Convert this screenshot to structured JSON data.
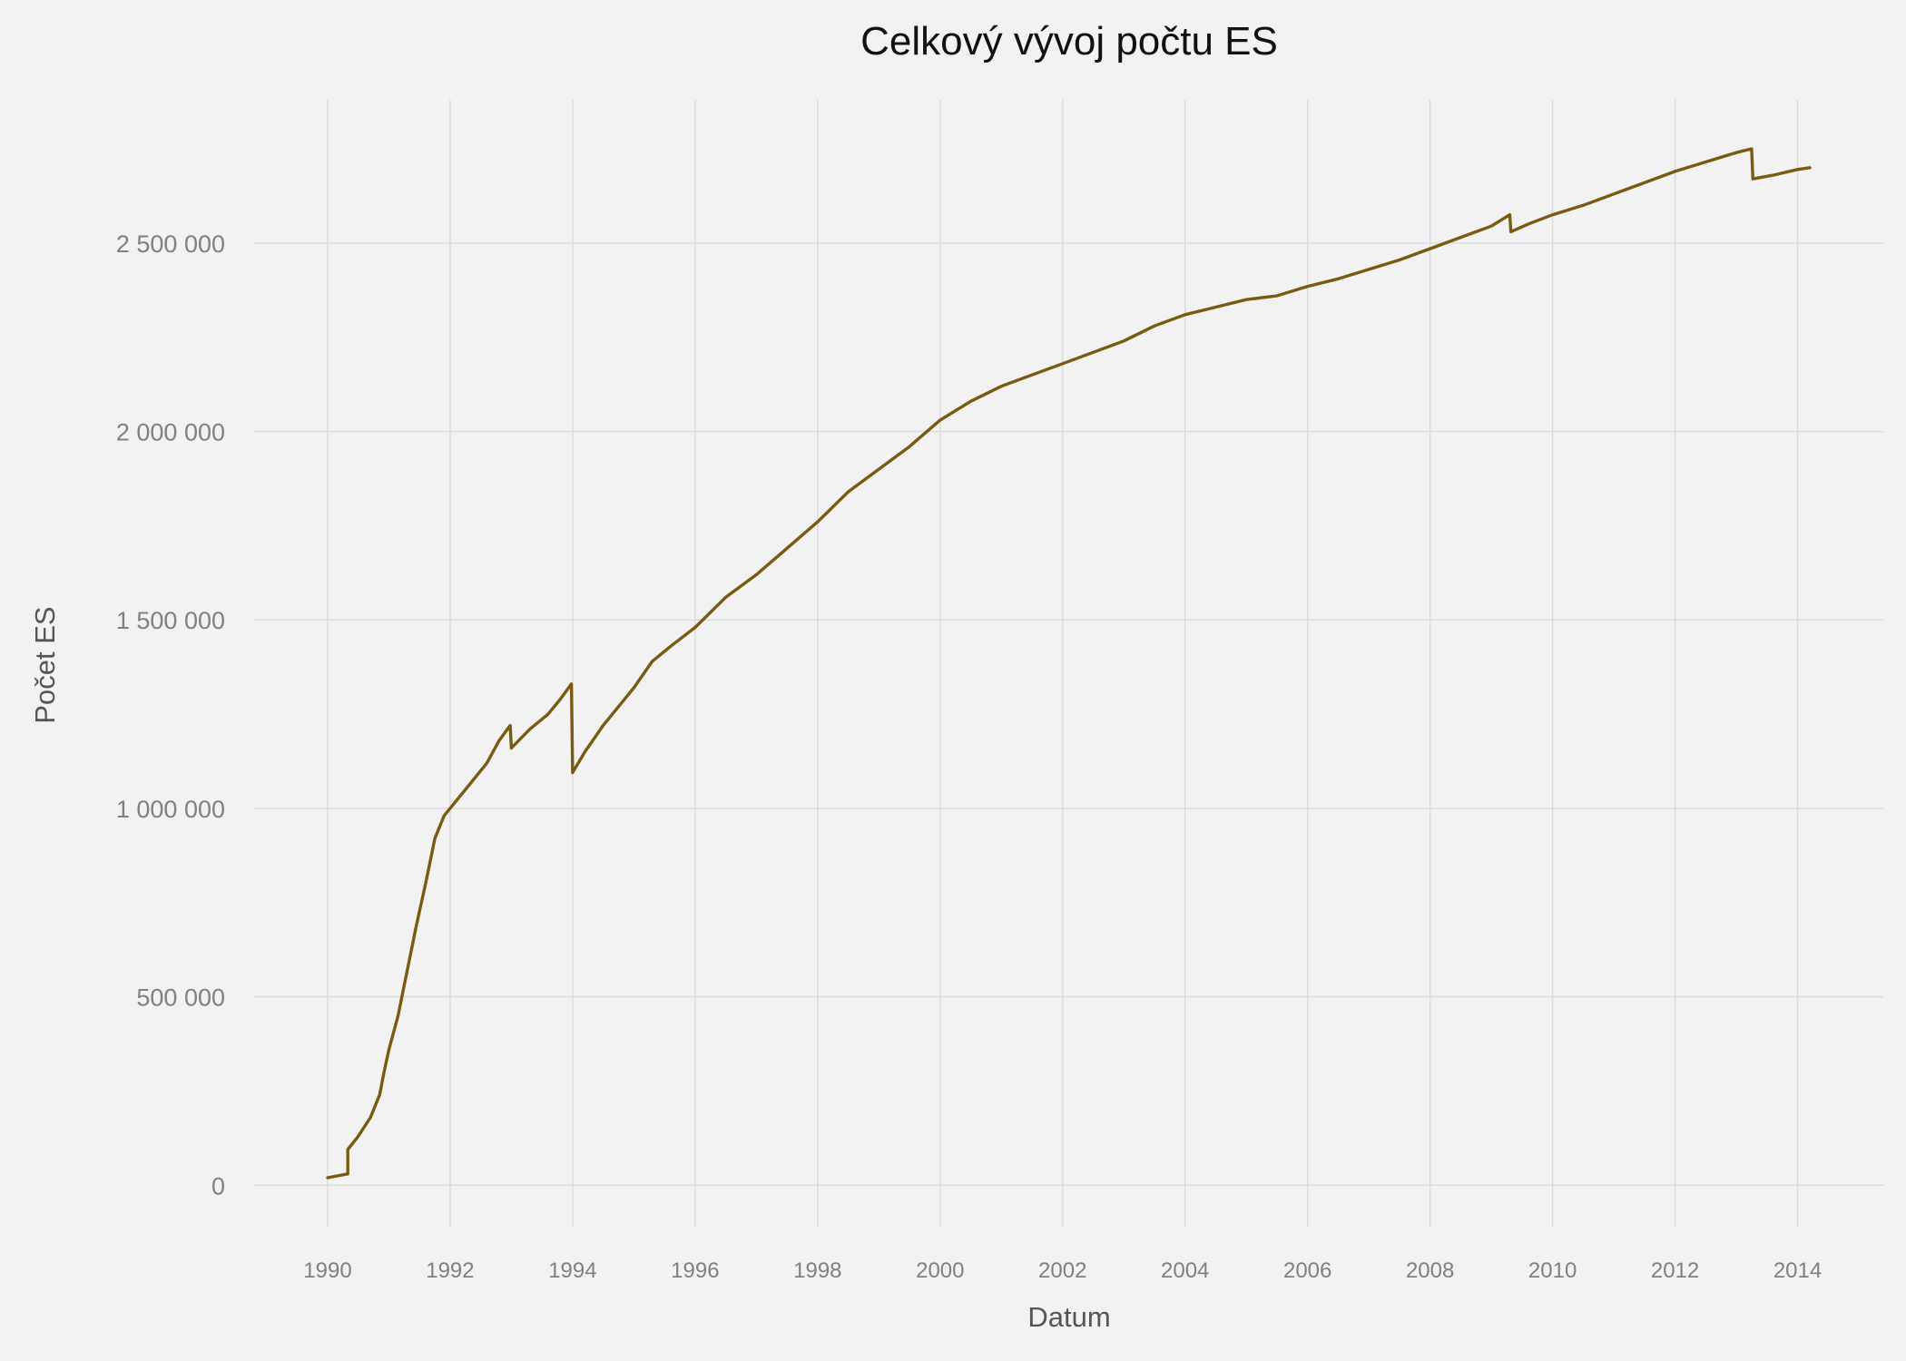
{
  "chart_data": {
    "type": "line",
    "title": "Celkový vývoj počtu ES",
    "xlabel": "Datum",
    "ylabel": "Počet ES",
    "xlim": [
      1988.8,
      2015.4
    ],
    "ylim": [
      -110000,
      2880000
    ],
    "grid": true,
    "legend": "none",
    "x_ticks": [
      1990,
      1992,
      1994,
      1996,
      1998,
      2000,
      2002,
      2004,
      2006,
      2008,
      2010,
      2012,
      2014
    ],
    "x_tick_labels": [
      "1990",
      "1992",
      "1994",
      "1996",
      "1998",
      "2000",
      "2002",
      "2004",
      "2006",
      "2008",
      "2010",
      "2012",
      "2014"
    ],
    "y_ticks": [
      0,
      500000,
      1000000,
      1500000,
      2000000,
      2500000
    ],
    "y_tick_labels": [
      "0",
      "500 000",
      "1 000 000",
      "1 500 000",
      "2 000 000",
      "2 500 000"
    ],
    "series": [
      {
        "name": "Počet ES",
        "color": "#7a5a12",
        "x": [
          1990.0,
          1990.33,
          1990.33,
          1990.5,
          1990.7,
          1990.85,
          1990.92,
          1991.0,
          1991.15,
          1991.3,
          1991.45,
          1991.6,
          1991.75,
          1991.9,
          1992.0,
          1992.3,
          1992.6,
          1992.8,
          1992.98,
          1993.0,
          1993.3,
          1993.6,
          1993.8,
          1993.98,
          1994.0,
          1994.2,
          1994.5,
          1994.8,
          1995.0,
          1995.3,
          1995.6,
          1996.0,
          1996.5,
          1997.0,
          1997.5,
          1998.0,
          1998.5,
          1999.0,
          1999.5,
          2000.0,
          2000.5,
          2001.0,
          2001.5,
          2002.0,
          2002.5,
          2003.0,
          2003.5,
          2004.0,
          2004.5,
          2005.0,
          2005.5,
          2006.0,
          2006.5,
          2007.0,
          2007.5,
          2008.0,
          2008.5,
          2009.0,
          2009.3,
          2009.32,
          2009.6,
          2010.0,
          2010.5,
          2011.0,
          2011.5,
          2012.0,
          2012.5,
          2013.0,
          2013.25,
          2013.27,
          2013.6,
          2014.0,
          2014.2
        ],
        "values": [
          20000,
          30000,
          95000,
          130000,
          180000,
          240000,
          300000,
          360000,
          450000,
          570000,
          690000,
          800000,
          920000,
          980000,
          1000000,
          1060000,
          1120000,
          1180000,
          1220000,
          1160000,
          1210000,
          1250000,
          1290000,
          1330000,
          1095000,
          1150000,
          1220000,
          1280000,
          1320000,
          1390000,
          1430000,
          1480000,
          1560000,
          1620000,
          1690000,
          1760000,
          1840000,
          1900000,
          1960000,
          2030000,
          2080000,
          2120000,
          2150000,
          2180000,
          2210000,
          2240000,
          2280000,
          2310000,
          2330000,
          2350000,
          2360000,
          2385000,
          2405000,
          2430000,
          2455000,
          2485000,
          2515000,
          2545000,
          2575000,
          2530000,
          2550000,
          2575000,
          2600000,
          2630000,
          2660000,
          2690000,
          2715000,
          2740000,
          2750000,
          2670000,
          2680000,
          2695000,
          2700000
        ]
      }
    ]
  }
}
